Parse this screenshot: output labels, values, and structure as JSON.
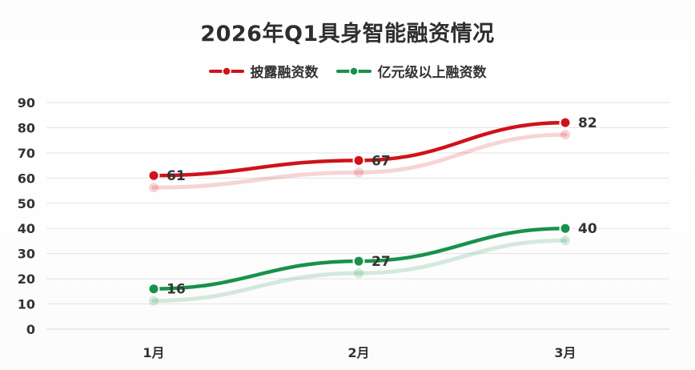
{
  "colors": {
    "series1": "#d0121b",
    "series2": "#17924a",
    "grid": "#e3e3e3",
    "text": "#333333"
  },
  "chart_data": {
    "type": "line",
    "title": "2026年Q1具身智能融资情况",
    "xlabel": "",
    "ylabel": "",
    "categories": [
      "1月",
      "2月",
      "3月"
    ],
    "ylim": [
      0,
      90
    ],
    "yticks": [
      0,
      10,
      20,
      30,
      40,
      50,
      60,
      70,
      80,
      90
    ],
    "grid": true,
    "legend_position": "top-center",
    "series": [
      {
        "name": "披露融资数",
        "values": [
          61,
          67,
          82
        ],
        "color": "#d0121b"
      },
      {
        "name": "亿元级以上融资数",
        "values": [
          16,
          27,
          40
        ],
        "color": "#17924a"
      }
    ]
  }
}
